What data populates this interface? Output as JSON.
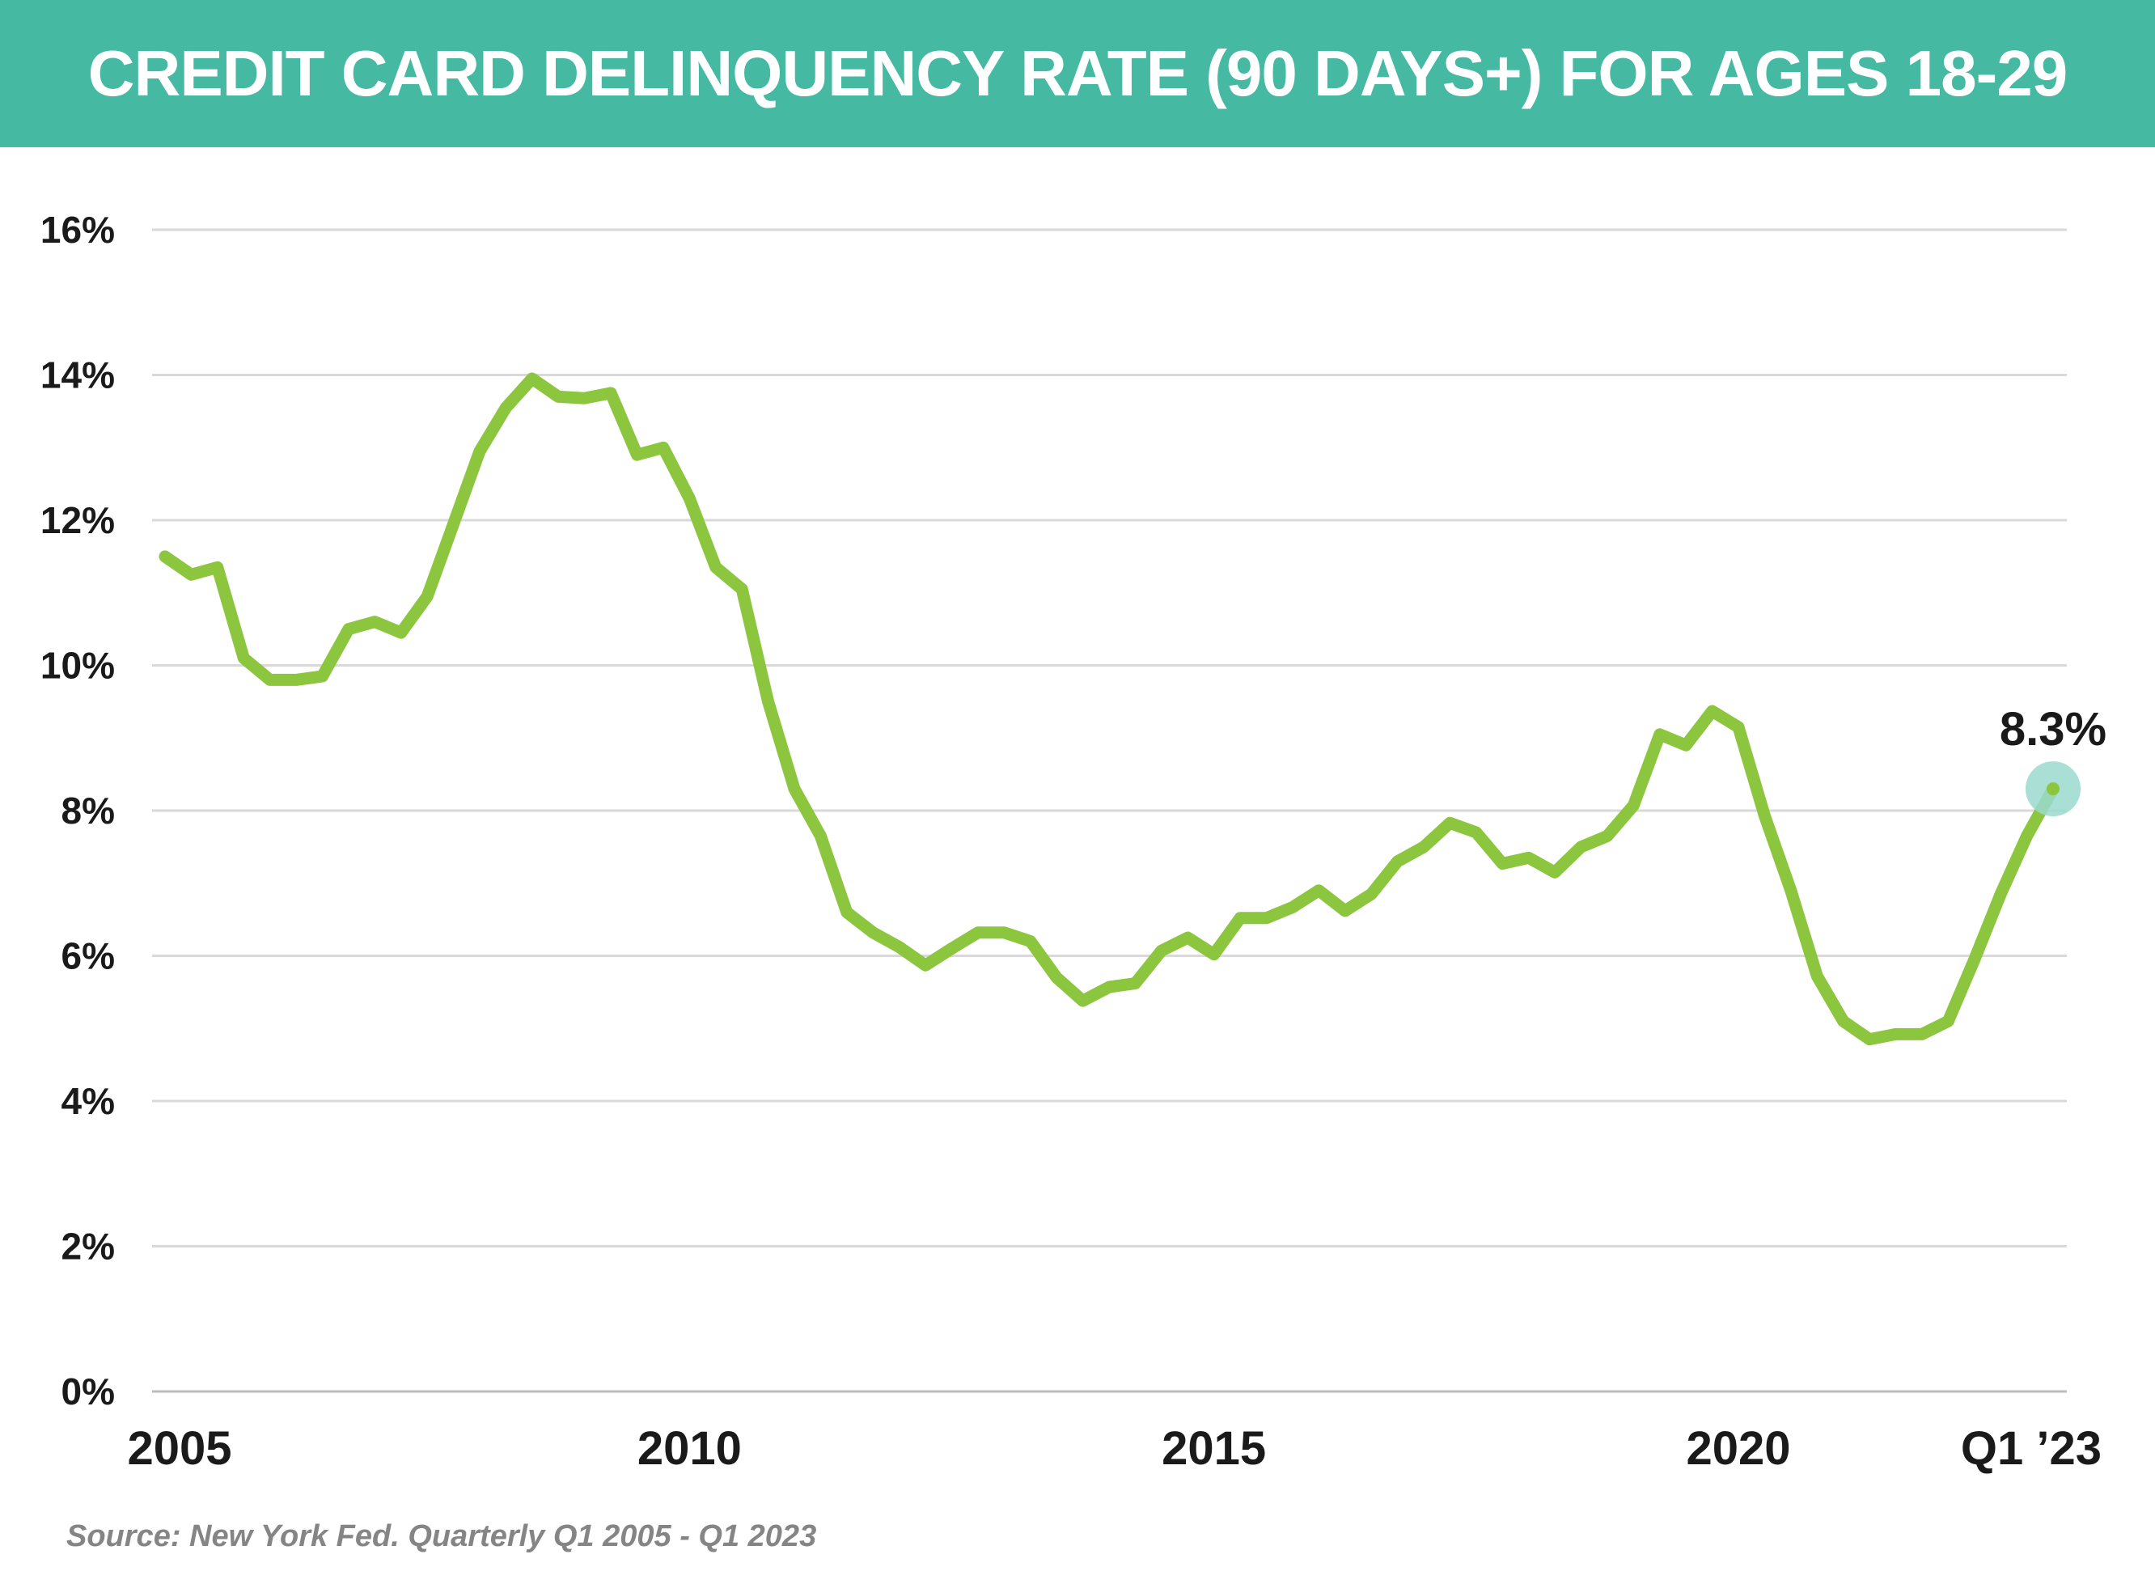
{
  "header": {
    "title": "CREDIT CARD DELINQUENCY RATE (90 DAYS+) FOR AGES 18-29",
    "background_color": "#45b9a1"
  },
  "chart_data": {
    "type": "line",
    "title": "CREDIT CARD DELINQUENCY RATE (90 DAYS+) FOR AGES 18-29",
    "xlabel": "",
    "ylabel": "",
    "ylim": [
      0,
      16
    ],
    "y_ticks": [
      "0%",
      "2%",
      "4%",
      "6%",
      "8%",
      "10%",
      "12%",
      "14%",
      "16%"
    ],
    "x_tick_labels": [
      {
        "label": "2005",
        "x": "2005 Q1"
      },
      {
        "label": "2010",
        "x": "2010 Q1"
      },
      {
        "label": "2015",
        "x": "2015 Q1"
      },
      {
        "label": "2020",
        "x": "2020 Q1"
      },
      {
        "label": "Q1 ’23",
        "x": "2023 Q1"
      }
    ],
    "grid": true,
    "line_color": "#8cc63f",
    "highlight_color": "#9ad9cd",
    "x": [
      "2005 Q1",
      "2005 Q2",
      "2005 Q3",
      "2005 Q4",
      "2006 Q1",
      "2006 Q2",
      "2006 Q3",
      "2006 Q4",
      "2007 Q1",
      "2007 Q2",
      "2007 Q3",
      "2007 Q4",
      "2008 Q1",
      "2008 Q2",
      "2008 Q3",
      "2008 Q4",
      "2009 Q1",
      "2009 Q2",
      "2009 Q3",
      "2009 Q4",
      "2010 Q1",
      "2010 Q2",
      "2010 Q3",
      "2010 Q4",
      "2011 Q1",
      "2011 Q2",
      "2011 Q3",
      "2011 Q4",
      "2012 Q1",
      "2012 Q2",
      "2012 Q3",
      "2012 Q4",
      "2013 Q1",
      "2013 Q2",
      "2013 Q3",
      "2013 Q4",
      "2014 Q1",
      "2014 Q2",
      "2014 Q3",
      "2014 Q4",
      "2015 Q1",
      "2015 Q2",
      "2015 Q3",
      "2015 Q4",
      "2016 Q1",
      "2016 Q2",
      "2016 Q3",
      "2016 Q4",
      "2017 Q1",
      "2017 Q2",
      "2017 Q3",
      "2017 Q4",
      "2018 Q1",
      "2018 Q2",
      "2018 Q3",
      "2018 Q4",
      "2019 Q1",
      "2019 Q2",
      "2019 Q3",
      "2019 Q4",
      "2020 Q1",
      "2020 Q2",
      "2020 Q3",
      "2020 Q4",
      "2021 Q1",
      "2021 Q2",
      "2021 Q3",
      "2021 Q4",
      "2022 Q1",
      "2022 Q2",
      "2022 Q3",
      "2022 Q4",
      "2023 Q1"
    ],
    "series": [
      {
        "values": [
          11.5,
          11.25,
          11.35,
          10.1,
          9.8,
          9.8,
          9.85,
          10.5,
          10.6,
          10.45,
          10.95,
          11.95,
          12.95,
          13.55,
          13.95,
          13.7,
          13.68,
          13.75,
          12.9,
          13.0,
          12.3,
          11.35,
          11.05,
          9.5,
          8.3,
          7.65,
          6.6,
          6.32,
          6.12,
          5.87,
          6.1,
          6.32,
          6.32,
          6.2,
          5.7,
          5.38,
          5.57,
          5.62,
          6.07,
          6.25,
          6.02,
          6.52,
          6.52,
          6.67,
          6.9,
          6.62,
          6.85,
          7.3,
          7.5,
          7.83,
          7.7,
          7.27,
          7.35,
          7.15,
          7.5,
          7.65,
          8.07,
          9.05,
          8.9,
          9.37,
          9.15,
          7.93,
          6.9,
          5.72,
          5.1,
          4.85,
          4.92,
          4.92,
          5.1,
          5.95,
          6.85,
          7.65,
          8.3
        ]
      }
    ],
    "annotations": [
      {
        "text": "8.3%",
        "x": "2023 Q1",
        "y": 8.3
      }
    ]
  },
  "source_note": "Source: New York Fed. Quarterly Q1 2005 - Q1 2023"
}
